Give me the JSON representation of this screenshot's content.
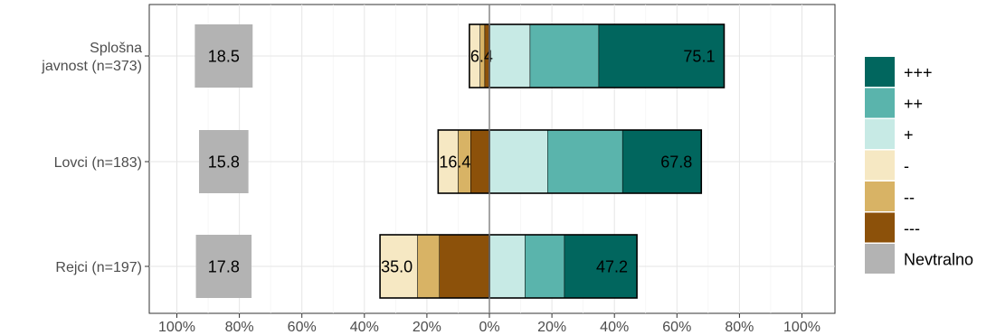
{
  "chart_data": {
    "type": "bar",
    "orientation": "horizontal-diverging-stacked",
    "categories": [
      "Splošna\njavnost (n=373)",
      "Lovci (n=183)",
      "Rejci (n=197)"
    ],
    "x_tick_labels": [
      "100%",
      "80%",
      "60%",
      "40%",
      "20%",
      "0%",
      "20%",
      "40%",
      "60%",
      "80%",
      "100%"
    ],
    "xlim": [
      -100,
      100
    ],
    "grid": true,
    "legend_position": "right",
    "series": [
      {
        "name": "---",
        "color": "#8c510a",
        "side": "negative",
        "values": [
          1.5,
          6.0,
          16.0
        ]
      },
      {
        "name": "--",
        "color": "#d8b365",
        "side": "negative",
        "values": [
          1.5,
          4.0,
          7.0
        ]
      },
      {
        "name": "-",
        "color": "#f6e8c3",
        "side": "negative",
        "values": [
          3.4,
          6.4,
          12.0
        ]
      },
      {
        "name": "+",
        "color": "#c7eae5",
        "side": "positive",
        "values": [
          13.0,
          18.6,
          11.4
        ]
      },
      {
        "name": "++",
        "color": "#5ab4ac",
        "side": "positive",
        "values": [
          22.0,
          24.0,
          12.6
        ]
      },
      {
        "name": "+++",
        "color": "#01665e",
        "side": "positive",
        "values": [
          40.1,
          25.2,
          23.2
        ]
      }
    ],
    "neutral": {
      "name": "Nevtralno",
      "color": "#b3b3b3",
      "values": [
        18.5,
        15.8,
        17.8
      ]
    },
    "negative_totals": [
      "6.4",
      "16.4",
      "35.0"
    ],
    "positive_totals": [
      "75.1",
      "67.8",
      "47.2"
    ],
    "neutral_labels": [
      "18.5",
      "15.8",
      "17.8"
    ],
    "legend_order": [
      "+++",
      "++",
      "+",
      "-",
      "--",
      "---",
      "Nevtralno"
    ]
  }
}
